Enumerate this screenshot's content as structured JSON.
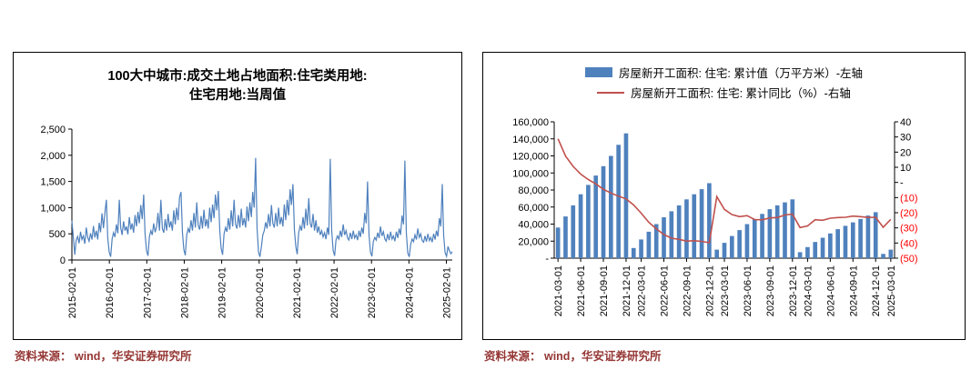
{
  "chart_data": [
    {
      "type": "line",
      "title_line1": "100大中城市:成交土地占地面积:住宅类用地:",
      "title_line2": "住宅用地:当周值",
      "line_color": "#4F81BD",
      "ylim": [
        0,
        2500
      ],
      "ytick_values": [
        0,
        500,
        1000,
        1500,
        2000,
        2500
      ],
      "ytick_labels": [
        "0",
        "500",
        "1,000",
        "1,500",
        "2,000",
        "2,500"
      ],
      "xtick_labels": [
        "2015-02-01",
        "2016-02-01",
        "2017-02-01",
        "2018-02-01",
        "2019-02-01",
        "2020-02-01",
        "2021-02-01",
        "2022-02-01",
        "2023-02-01",
        "2024-02-01",
        "2025-02-01"
      ],
      "x_start": "2015-02-01",
      "x_step_days": 14,
      "points_per_year": 26.09,
      "values": [
        750,
        430,
        100,
        380,
        450,
        320,
        540,
        390,
        460,
        310,
        620,
        430,
        360,
        510,
        390,
        650,
        430,
        560,
        390,
        710,
        530,
        890,
        610,
        910,
        1150,
        420,
        150,
        60,
        400,
        520,
        440,
        680,
        510,
        1150,
        620,
        480,
        740,
        560,
        640,
        490,
        820,
        580,
        700,
        520,
        860,
        640,
        920,
        700,
        1050,
        780,
        1250,
        500,
        180,
        80,
        450,
        560,
        480,
        700,
        530,
        640,
        900,
        560,
        1150,
        600,
        520,
        780,
        560,
        880,
        620,
        740,
        560,
        950,
        680,
        1000,
        760,
        1200,
        1300,
        520,
        200,
        90,
        480,
        600,
        520,
        760,
        560,
        900,
        620,
        1100,
        660,
        580,
        840,
        600,
        960,
        640,
        780,
        600,
        1000,
        720,
        1060,
        800,
        1250,
        950,
        1320,
        560,
        220,
        100,
        500,
        620,
        540,
        800,
        580,
        950,
        640,
        1150,
        680,
        600,
        860,
        620,
        980,
        660,
        800,
        620,
        1020,
        740,
        1100,
        820,
        1300,
        1000,
        1950,
        600,
        150,
        60,
        250,
        480,
        560,
        720,
        600,
        880,
        640,
        1050,
        700,
        620,
        900,
        640,
        1000,
        680,
        820,
        640,
        1060,
        760,
        1150,
        850,
        1350,
        1050,
        1450,
        580,
        250,
        110,
        520,
        650,
        560,
        820,
        600,
        980,
        660,
        1180,
        700,
        620,
        880,
        560,
        760,
        520,
        640,
        480,
        560,
        440,
        520,
        400,
        620,
        480,
        1930,
        560,
        180,
        80,
        380,
        460,
        400,
        560,
        440,
        680,
        480,
        560,
        420,
        380,
        520,
        400,
        560,
        420,
        480,
        380,
        560,
        440,
        620,
        500,
        900,
        700,
        1500,
        480,
        150,
        70,
        350,
        430,
        380,
        520,
        420,
        640,
        460,
        540,
        400,
        360,
        500,
        380,
        540,
        400,
        460,
        360,
        540,
        420,
        600,
        480,
        850,
        680,
        1900,
        520,
        130,
        60,
        300,
        400,
        350,
        480,
        390,
        600,
        430,
        500,
        370,
        340,
        460,
        350,
        500,
        370,
        430,
        340,
        500,
        390,
        560,
        450,
        800,
        640,
        1450,
        480,
        140,
        70,
        260,
        180,
        120,
        160
      ],
      "source": "资料来源：  wind，华安证券研究所",
      "source_color": "#953735"
    },
    {
      "type": "bar+line",
      "legend": [
        {
          "label": "房屋新开工面积: 住宅: 累计值（万平方米）-左轴",
          "color": "#4F81BD",
          "marker": "bar"
        },
        {
          "label": "房屋新开工面积: 住宅: 累计同比（%）-右轴",
          "color": "#C0504D",
          "marker": "line"
        }
      ],
      "left_axis": {
        "min": 0,
        "max": 160000,
        "tick_values": [
          0,
          20000,
          40000,
          60000,
          80000,
          100000,
          120000,
          140000,
          160000
        ],
        "tick_labels": [
          "-",
          "20,000",
          "40,000",
          "60,000",
          "80,000",
          "100,000",
          "120,000",
          "140,000",
          "160,000"
        ]
      },
      "right_axis": {
        "min": -50,
        "max": 40,
        "tick_values": [
          -50,
          -40,
          -30,
          -20,
          -10,
          0,
          10,
          20,
          30,
          40
        ],
        "tick_labels": [
          "(50)",
          "(40)",
          "(30)",
          "(20)",
          "(10)",
          "-",
          "10",
          "20",
          "30",
          "40"
        ],
        "negative_color": "#FF0000"
      },
      "categories": [
        "2021-03",
        "2021-04",
        "2021-05",
        "2021-06",
        "2021-07",
        "2021-08",
        "2021-09",
        "2021-10",
        "2021-11",
        "2021-12",
        "2022-02",
        "2022-03",
        "2022-04",
        "2022-05",
        "2022-06",
        "2022-07",
        "2022-08",
        "2022-09",
        "2022-10",
        "2022-11",
        "2022-12",
        "2023-02",
        "2023-03",
        "2023-04",
        "2023-05",
        "2023-06",
        "2023-07",
        "2023-08",
        "2023-09",
        "2023-10",
        "2023-11",
        "2023-12",
        "2024-02",
        "2024-03",
        "2024-04",
        "2024-05",
        "2024-06",
        "2024-07",
        "2024-08",
        "2024-09",
        "2024-10",
        "2024-11",
        "2024-12",
        "2025-02",
        "2025-03"
      ],
      "bars": {
        "name": "房屋新开工面积: 住宅: 累计值（万平方米）",
        "color": "#4F81BD",
        "values": [
          36000,
          49000,
          62000,
          75000,
          86000,
          97000,
          108000,
          120000,
          133000,
          146500,
          12000,
          22000,
          31000,
          40000,
          48000,
          55000,
          62000,
          69000,
          75000,
          81000,
          88000,
          10000,
          18000,
          26000,
          33000,
          40000,
          46000,
          52000,
          57500,
          62000,
          65500,
          69000,
          7000,
          13000,
          19000,
          24000,
          29000,
          34000,
          38000,
          42000,
          46000,
          50000,
          54000,
          5000,
          10000
        ]
      },
      "line": {
        "name": "房屋新开工面积: 住宅: 累计同比（%）",
        "color": "#C0504D",
        "values": [
          28.8,
          17.4,
          10.6,
          5.5,
          1.9,
          -1.0,
          -4.5,
          -7.0,
          -9.1,
          -10.9,
          -14.9,
          -20.3,
          -26.3,
          -30.6,
          -34.4,
          -36.8,
          -37.6,
          -38.7,
          -38.5,
          -38.9,
          -39.8,
          -9.4,
          -17.8,
          -21.2,
          -22.6,
          -21.9,
          -24.5,
          -24.7,
          -23.4,
          -23.2,
          -21.5,
          -20.9,
          -29.8,
          -28.7,
          -24.6,
          -25.0,
          -23.6,
          -23.2,
          -23.0,
          -22.2,
          -22.6,
          -23.1,
          -23.0,
          -29.6,
          -24.4
        ]
      },
      "xtick_indices": [
        0,
        3,
        6,
        9,
        11,
        14,
        17,
        20,
        22,
        25,
        28,
        31,
        33,
        36,
        39,
        42,
        44
      ],
      "xtick_labels": [
        "2021-03-01",
        "2021-06-01",
        "2021-09-01",
        "2021-12-01",
        "2022-03-01",
        "2022-06-01",
        "2022-09-01",
        "2022-12-01",
        "2023-03-01",
        "2023-06-01",
        "2023-09-01",
        "2023-12-01",
        "2024-03-01",
        "2024-06-01",
        "2024-09-01",
        "2024-12-01",
        "2025-03-01"
      ],
      "source": "资料来源：  wind，华安证券研究所",
      "source_color": "#953735"
    }
  ]
}
